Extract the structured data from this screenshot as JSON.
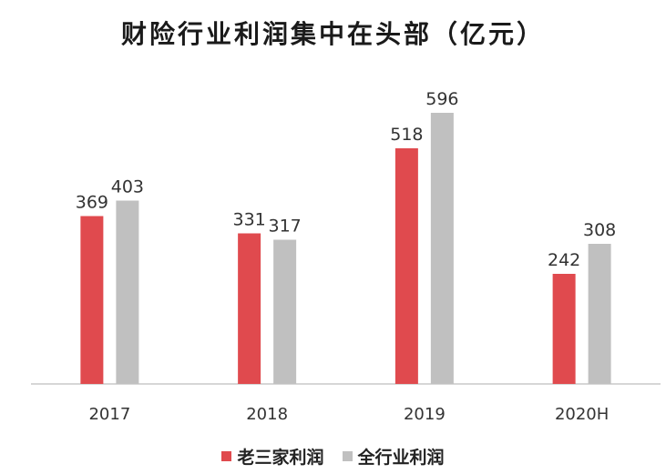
{
  "chart_data": {
    "type": "bar",
    "title": "财险行业利润集中在头部（亿元）",
    "categories": [
      "2017",
      "2018",
      "2019",
      "2020H"
    ],
    "series": [
      {
        "name": "老三家利润",
        "values": [
          369,
          331,
          518,
          242
        ],
        "color": "#e04a4e"
      },
      {
        "name": "全行业利润",
        "values": [
          403,
          317,
          596,
          308
        ],
        "color": "#c0c0c0"
      }
    ],
    "xlabel": "",
    "ylabel": "",
    "ylim": [
      0,
      650
    ],
    "grid": false,
    "legend_position": "bottom"
  }
}
